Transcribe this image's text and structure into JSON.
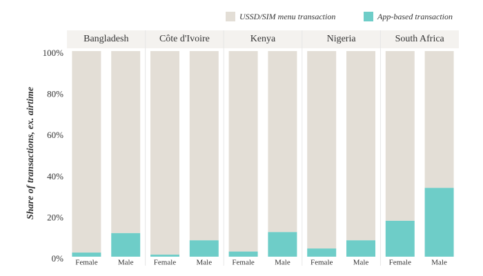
{
  "chart_data": {
    "type": "bar",
    "stacked": true,
    "y_label": "Share of transactions, ex. airtime",
    "groups": [
      "Bangladesh",
      "Côte d'Ivoire",
      "Kenya",
      "Nigeria",
      "South Africa"
    ],
    "categories": [
      "Female",
      "Male",
      "Female",
      "Male",
      "Female",
      "Male",
      "Female",
      "Male",
      "Female",
      "Male"
    ],
    "series": [
      {
        "name": "App-based transaction",
        "color": "#6ecdc8",
        "values": [
          2,
          11.5,
          1,
          8,
          2.5,
          12,
          4,
          8,
          17.5,
          33.5
        ]
      },
      {
        "name": "USSD/SIM menu transaction",
        "color": "#e3ded6",
        "values": [
          98,
          88.5,
          99,
          92,
          97.5,
          88,
          96,
          92,
          82.5,
          66.5
        ]
      }
    ],
    "ylim": [
      0,
      100
    ],
    "yticks": [
      {
        "value": 0,
        "label": "0%"
      },
      {
        "value": 20,
        "label": "20%"
      },
      {
        "value": 40,
        "label": "40%"
      },
      {
        "value": 60,
        "label": "60%"
      },
      {
        "value": 80,
        "label": "80%"
      },
      {
        "value": 100,
        "label": "100%"
      }
    ]
  }
}
